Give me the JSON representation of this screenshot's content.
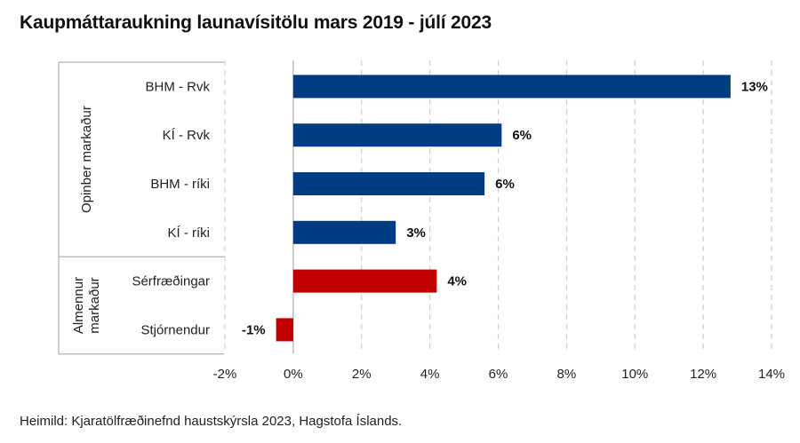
{
  "title": "Kaupmáttaraukning launavísitölu mars 2019 - júlí 2023",
  "source": "Heimild: Kjaratölfræðinefnd haustskýrsla 2023, Hagstofa Íslands.",
  "colors": {
    "public": "#003c84",
    "private": "#c00000",
    "grid": "#cfcfcf",
    "bracket": "#bdbdbd"
  },
  "groups": [
    {
      "lines": [
        "Opinber markaður"
      ],
      "from": 0,
      "to": 3
    },
    {
      "lines": [
        "Almennur",
        "markaður"
      ],
      "from": 4,
      "to": 5
    }
  ],
  "chart_data": {
    "type": "bar",
    "orientation": "horizontal",
    "title": "Kaupmáttaraukning launavísitölu mars 2019 - júlí 2023",
    "categories": [
      "BHM - Rvk",
      "KÍ - Rvk",
      "BHM - ríki",
      "KÍ - ríki",
      "Sérfræðingar",
      "Stjórnendur"
    ],
    "values": [
      12.8,
      6.1,
      5.6,
      3.0,
      4.2,
      -0.5
    ],
    "data_labels": [
      "13%",
      "6%",
      "6%",
      "3%",
      "4%",
      "-1%"
    ],
    "bar_colors": [
      "#003c84",
      "#003c84",
      "#003c84",
      "#003c84",
      "#c00000",
      "#c00000"
    ],
    "xlim": [
      -2,
      14
    ],
    "xticks": [
      -2,
      0,
      2,
      4,
      6,
      8,
      10,
      12,
      14
    ],
    "xtick_labels": [
      "-2%",
      "0%",
      "2%",
      "4%",
      "6%",
      "8%",
      "10%",
      "12%",
      "14%"
    ],
    "grid": "vertical dashed",
    "legend": "none"
  }
}
